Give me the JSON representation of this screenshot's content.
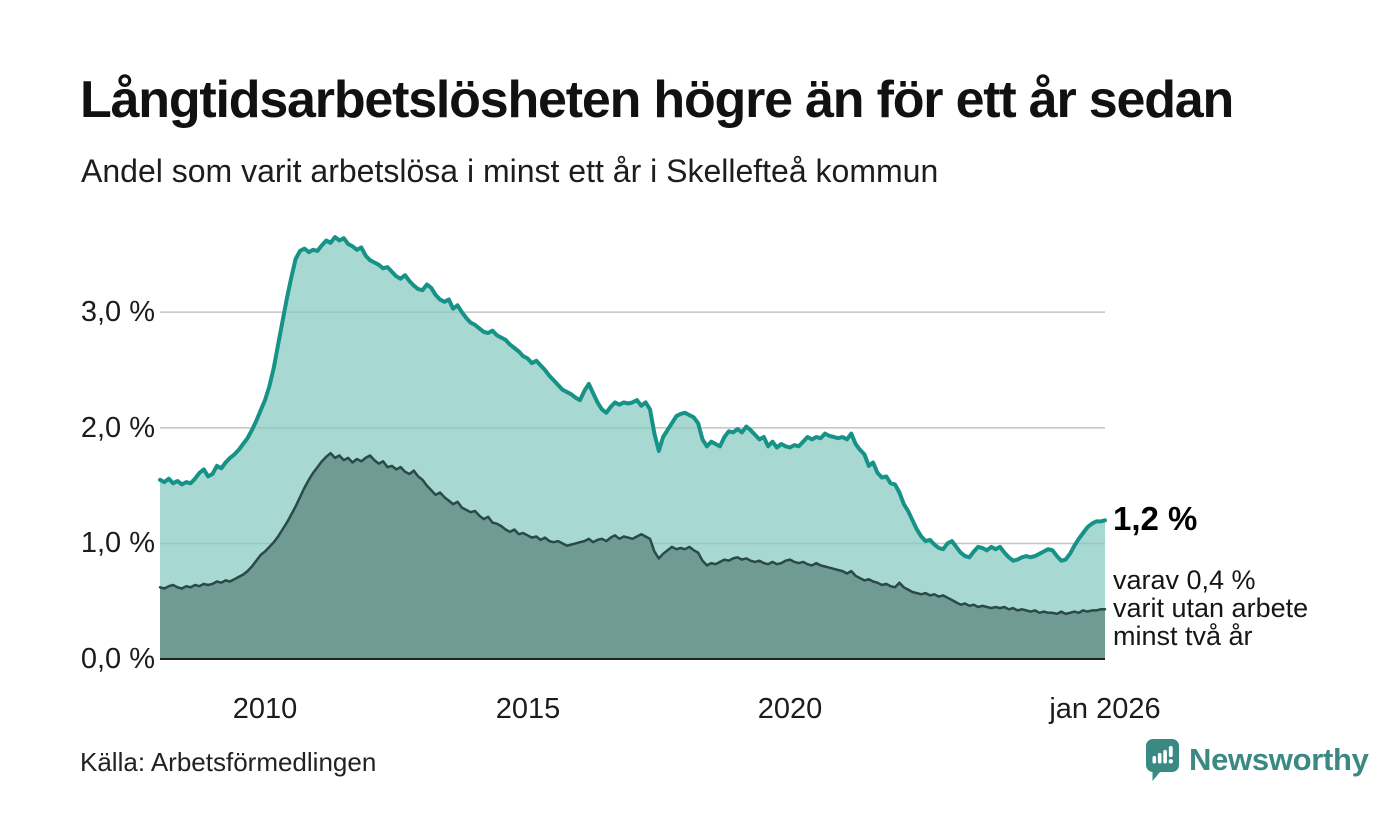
{
  "header": {
    "title": "Långtidsarbetslösheten högre än för ett år sedan",
    "subtitle": "Andel som varit arbetslösa i minst ett år i Skellefteå kommun"
  },
  "annotation": {
    "value": "1,2 %",
    "detail_line1": "varav 0,4 %",
    "detail_line2": "varit utan arbete",
    "detail_line3": "minst två år"
  },
  "axes": {
    "y_ticks": [
      "3,0 %",
      "2,0 %",
      "1,0 %",
      "0,0 %"
    ],
    "x_ticks": [
      "2010",
      "2015",
      "2020",
      "jan 2026"
    ]
  },
  "footer": {
    "source": "Källa: Arbetsförmedlingen",
    "brand": "Newsworthy"
  },
  "colors": {
    "accent_teal_line": "#179287",
    "light_area_fill": "#a8d8d2",
    "dark_area_fill": "#6f9b94",
    "dark_line": "#2a4a46",
    "gridline": "#d9d9d9",
    "axis_line": "#222222",
    "brand_teal": "#3a8a83"
  },
  "chart_data": {
    "type": "area",
    "title": "Långtidsarbetslösheten högre än för ett år sedan",
    "subtitle": "Andel som varit arbetslösa i minst ett år i Skellefteå kommun",
    "x_start": "2008-01",
    "x_end": "2026-01",
    "x_interval": "monthly",
    "y_unit": "%",
    "ylim": [
      0,
      3.8
    ],
    "grid_values": [
      1,
      2,
      3
    ],
    "legend_position": "none",
    "x_tick_years": [
      2010,
      2015,
      2020,
      2026
    ],
    "end_labels": {
      "series1": "1,2 %",
      "series2": "0,4 %"
    },
    "series": [
      {
        "name": "Andel arbetslösa minst ett år",
        "color": "#179287",
        "fill": "#a8d8d2",
        "line_width": 4,
        "values": [
          1.55,
          1.53,
          1.56,
          1.52,
          1.54,
          1.51,
          1.53,
          1.52,
          1.56,
          1.61,
          1.64,
          1.58,
          1.6,
          1.67,
          1.65,
          1.7,
          1.74,
          1.77,
          1.81,
          1.86,
          1.91,
          1.98,
          2.06,
          2.15,
          2.24,
          2.36,
          2.52,
          2.72,
          2.92,
          3.12,
          3.3,
          3.46,
          3.53,
          3.55,
          3.52,
          3.54,
          3.53,
          3.58,
          3.62,
          3.6,
          3.65,
          3.62,
          3.64,
          3.59,
          3.57,
          3.54,
          3.56,
          3.49,
          3.45,
          3.43,
          3.41,
          3.38,
          3.39,
          3.35,
          3.31,
          3.29,
          3.32,
          3.27,
          3.23,
          3.2,
          3.19,
          3.24,
          3.21,
          3.15,
          3.11,
          3.09,
          3.11,
          3.03,
          3.06,
          3.0,
          2.95,
          2.91,
          2.89,
          2.86,
          2.83,
          2.82,
          2.84,
          2.8,
          2.78,
          2.76,
          2.72,
          2.69,
          2.66,
          2.62,
          2.6,
          2.56,
          2.58,
          2.54,
          2.5,
          2.45,
          2.41,
          2.37,
          2.33,
          2.31,
          2.29,
          2.26,
          2.24,
          2.32,
          2.38,
          2.3,
          2.22,
          2.16,
          2.13,
          2.18,
          2.22,
          2.2,
          2.22,
          2.21,
          2.22,
          2.24,
          2.19,
          2.22,
          2.16,
          1.95,
          1.8,
          1.92,
          1.98,
          2.04,
          2.1,
          2.12,
          2.13,
          2.11,
          2.09,
          2.04,
          1.9,
          1.84,
          1.88,
          1.86,
          1.84,
          1.92,
          1.97,
          1.96,
          1.99,
          1.96,
          2.01,
          1.98,
          1.94,
          1.9,
          1.92,
          1.84,
          1.88,
          1.83,
          1.86,
          1.84,
          1.83,
          1.85,
          1.84,
          1.88,
          1.92,
          1.9,
          1.92,
          1.91,
          1.95,
          1.93,
          1.92,
          1.91,
          1.92,
          1.9,
          1.95,
          1.86,
          1.81,
          1.77,
          1.67,
          1.7,
          1.61,
          1.57,
          1.58,
          1.52,
          1.51,
          1.44,
          1.34,
          1.28,
          1.2,
          1.12,
          1.06,
          1.02,
          1.03,
          0.99,
          0.96,
          0.95,
          1.0,
          1.02,
          0.97,
          0.92,
          0.89,
          0.88,
          0.93,
          0.97,
          0.96,
          0.94,
          0.97,
          0.95,
          0.97,
          0.92,
          0.88,
          0.85,
          0.86,
          0.88,
          0.89,
          0.88,
          0.89,
          0.91,
          0.93,
          0.95,
          0.94,
          0.89,
          0.85,
          0.86,
          0.91,
          0.98,
          1.04,
          1.09,
          1.14,
          1.17,
          1.19,
          1.19,
          1.2
        ]
      },
      {
        "name": "Andel arbetslösa minst två år",
        "color": "#2a4a46",
        "fill": "#6f9b94",
        "line_width": 2.5,
        "values": [
          0.62,
          0.61,
          0.63,
          0.64,
          0.62,
          0.61,
          0.63,
          0.62,
          0.64,
          0.63,
          0.65,
          0.64,
          0.65,
          0.67,
          0.66,
          0.68,
          0.67,
          0.69,
          0.71,
          0.73,
          0.76,
          0.8,
          0.85,
          0.9,
          0.93,
          0.97,
          1.01,
          1.06,
          1.12,
          1.18,
          1.25,
          1.32,
          1.4,
          1.48,
          1.55,
          1.61,
          1.66,
          1.71,
          1.75,
          1.78,
          1.74,
          1.76,
          1.72,
          1.74,
          1.7,
          1.73,
          1.71,
          1.74,
          1.76,
          1.72,
          1.69,
          1.71,
          1.66,
          1.67,
          1.64,
          1.66,
          1.62,
          1.6,
          1.63,
          1.58,
          1.55,
          1.5,
          1.46,
          1.42,
          1.44,
          1.4,
          1.37,
          1.34,
          1.36,
          1.31,
          1.29,
          1.27,
          1.28,
          1.24,
          1.21,
          1.23,
          1.18,
          1.17,
          1.15,
          1.12,
          1.1,
          1.12,
          1.08,
          1.09,
          1.07,
          1.05,
          1.06,
          1.03,
          1.05,
          1.02,
          1.01,
          1.02,
          1.0,
          0.98,
          0.99,
          1.0,
          1.01,
          1.02,
          1.04,
          1.01,
          1.03,
          1.04,
          1.02,
          1.05,
          1.07,
          1.04,
          1.06,
          1.05,
          1.04,
          1.06,
          1.08,
          1.06,
          1.04,
          0.93,
          0.87,
          0.91,
          0.94,
          0.97,
          0.95,
          0.96,
          0.95,
          0.97,
          0.94,
          0.92,
          0.85,
          0.81,
          0.83,
          0.82,
          0.84,
          0.86,
          0.85,
          0.87,
          0.88,
          0.86,
          0.87,
          0.85,
          0.84,
          0.85,
          0.83,
          0.82,
          0.84,
          0.82,
          0.83,
          0.85,
          0.86,
          0.84,
          0.83,
          0.84,
          0.82,
          0.81,
          0.83,
          0.81,
          0.8,
          0.79,
          0.78,
          0.77,
          0.76,
          0.74,
          0.76,
          0.72,
          0.7,
          0.68,
          0.69,
          0.67,
          0.66,
          0.64,
          0.65,
          0.63,
          0.62,
          0.66,
          0.62,
          0.6,
          0.58,
          0.57,
          0.56,
          0.57,
          0.55,
          0.56,
          0.54,
          0.55,
          0.53,
          0.51,
          0.49,
          0.47,
          0.48,
          0.46,
          0.47,
          0.45,
          0.46,
          0.45,
          0.44,
          0.45,
          0.44,
          0.45,
          0.43,
          0.44,
          0.42,
          0.43,
          0.42,
          0.41,
          0.42,
          0.4,
          0.41,
          0.4,
          0.4,
          0.39,
          0.41,
          0.39,
          0.4,
          0.41,
          0.4,
          0.42,
          0.41,
          0.42,
          0.42,
          0.43,
          0.43
        ]
      }
    ]
  }
}
